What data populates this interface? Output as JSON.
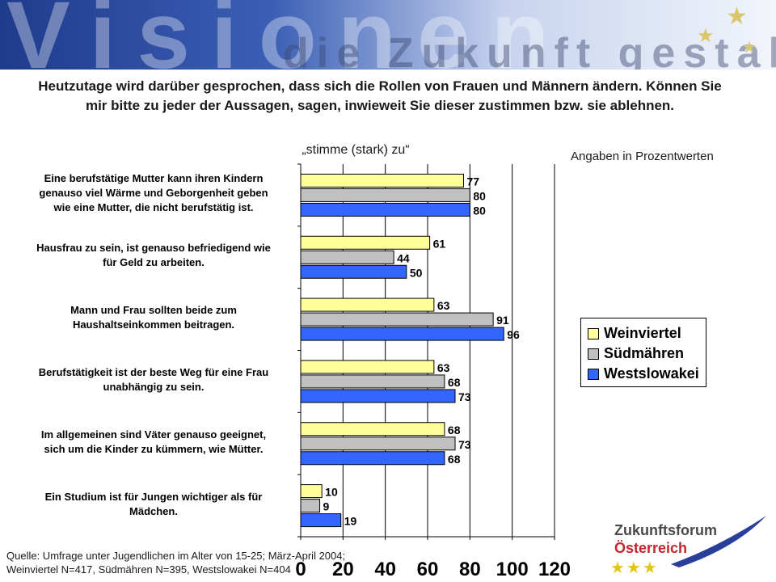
{
  "banner": {
    "big_text": "Visionen",
    "sub_text": "die Zukunft gestalten"
  },
  "title": "Heutzutage wird darüber gesprochen, dass sich die Rollen von Frauen und Männern ändern. Können Sie mir bitte zu jeder der Aussagen, sagen, inwieweit Sie dieser zustimmen bzw. sie ablehnen.",
  "subtitle": "„stimme (stark) zu“",
  "units_note": "Angaben in  Prozentwerten",
  "source_line1": "Quelle: Umfrage unter Jugendlichen im Alter von 15-25; März-April 2004;",
  "source_line2": "Weinviertel N=417, Südmähren N=395, Westslowakei N=404",
  "logo": {
    "line1": "Zukunftsforum",
    "line2": "Österreich"
  },
  "chart_data": {
    "type": "bar",
    "orientation": "horizontal",
    "title": "„stimme (stark) zu“",
    "xlabel": "",
    "ylabel": "",
    "xlim": [
      0,
      120
    ],
    "xticks": [
      0,
      20,
      40,
      60,
      80,
      100,
      120
    ],
    "grid": true,
    "legend_position": "right",
    "categories": [
      "Eine berufstätige Mutter kann ihren Kindern genauso viel Wärme und Geborgenheit geben wie eine Mutter, die nicht berufstätig ist.",
      "Hausfrau zu sein, ist genauso befriedigend wie für Geld zu arbeiten.",
      "Mann und Frau sollten beide zum Haushaltseinkommen beitragen.",
      "Berufstätigkeit ist der beste Weg für eine Frau unabhängig zu sein.",
      "Im allgemeinen sind Väter genauso geeignet, sich um die Kinder zu kümmern, wie Mütter.",
      "Ein Studium ist für Jungen wichtiger als für Mädchen."
    ],
    "category_lines": [
      [
        "Eine berufstätige Mutter kann ihren Kindern",
        "genauso viel Wärme und Geborgenheit geben",
        "wie eine Mutter, die nicht berufstätig ist."
      ],
      [
        "Hausfrau zu sein, ist genauso befriedigend wie",
        "für Geld zu arbeiten."
      ],
      [
        "Mann und Frau sollten beide zum",
        "Haushaltseinkommen beitragen."
      ],
      [
        "Berufstätigkeit ist der beste Weg für eine Frau",
        "unabhängig zu sein."
      ],
      [
        "Im allgemeinen sind Väter genauso geeignet,",
        "sich um die Kinder zu kümmern, wie Mütter."
      ],
      [
        "Ein Studium ist für Jungen wichtiger als für",
        "Mädchen."
      ]
    ],
    "series": [
      {
        "name": "Weinviertel",
        "color": "#ffff99",
        "values": [
          77,
          61,
          63,
          63,
          68,
          10
        ]
      },
      {
        "name": "Südmähren",
        "color": "#c0c0c0",
        "values": [
          80,
          44,
          91,
          68,
          73,
          9
        ]
      },
      {
        "name": "Westslowakei",
        "color": "#3366ff",
        "values": [
          80,
          50,
          96,
          73,
          68,
          19
        ]
      }
    ]
  }
}
